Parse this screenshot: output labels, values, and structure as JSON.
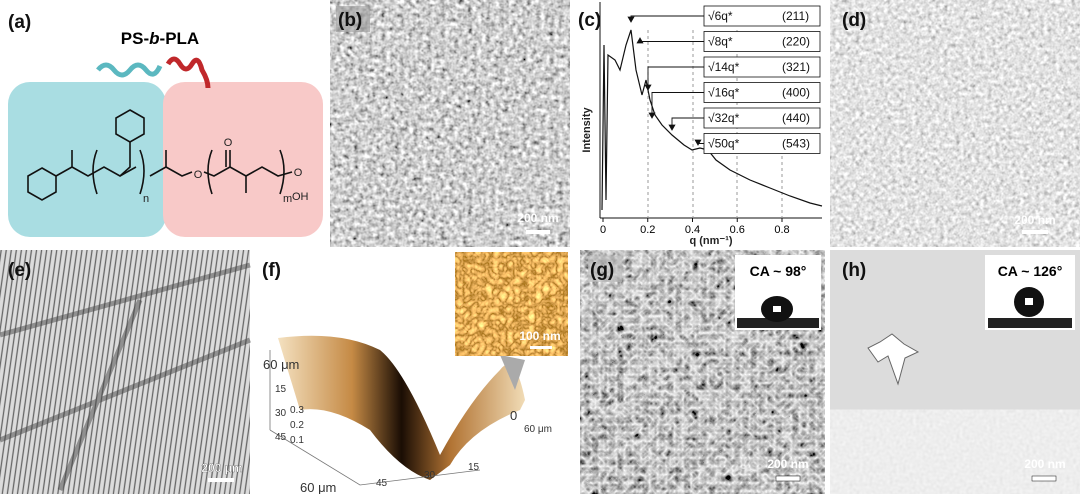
{
  "panels": {
    "a": {
      "label": "(a)",
      "title_parts": [
        "PS-",
        "b",
        "-PLA"
      ],
      "atoms": [
        "O",
        "O",
        "O",
        "OH",
        "n",
        "m"
      ]
    },
    "b": {
      "label": "(b)",
      "scale": "200 nm"
    },
    "c": {
      "label": "(c)",
      "ylabel": "Intensity",
      "xlabel": "q (nm⁻¹)",
      "xticks": [
        "0",
        "0.2",
        "0.4",
        "0.6",
        "0.8"
      ],
      "peaks": [
        {
          "ratio": "√6q*",
          "index": "(211)"
        },
        {
          "ratio": "√8q*",
          "index": "(220)"
        },
        {
          "ratio": "√14q*",
          "index": "(321)"
        },
        {
          "ratio": "√16q*",
          "index": "(400)"
        },
        {
          "ratio": "√32q*",
          "index": "(440)"
        },
        {
          "ratio": "√50q*",
          "index": "(543)"
        }
      ]
    },
    "d": {
      "label": "(d)",
      "scale": "200 nm"
    },
    "e": {
      "label": "(e)",
      "scale": "200 μm"
    },
    "f": {
      "label": "(f)",
      "inset_scale": "100 nm",
      "left_axis": [
        "60 μm",
        "15",
        "30",
        "45"
      ],
      "z_axis": [
        "0.3",
        "0.2",
        "0.1"
      ],
      "bottom_axis": [
        "60 μm",
        "45",
        "30",
        "15"
      ],
      "right_axis": [
        "0",
        "60 μm"
      ]
    },
    "g": {
      "label": "(g)",
      "contact_angle": "CA ~ 98°",
      "scale": "200 nm"
    },
    "h": {
      "label": "(h)",
      "contact_angle": "CA ~ 126°",
      "scale": "200 nm"
    }
  }
}
